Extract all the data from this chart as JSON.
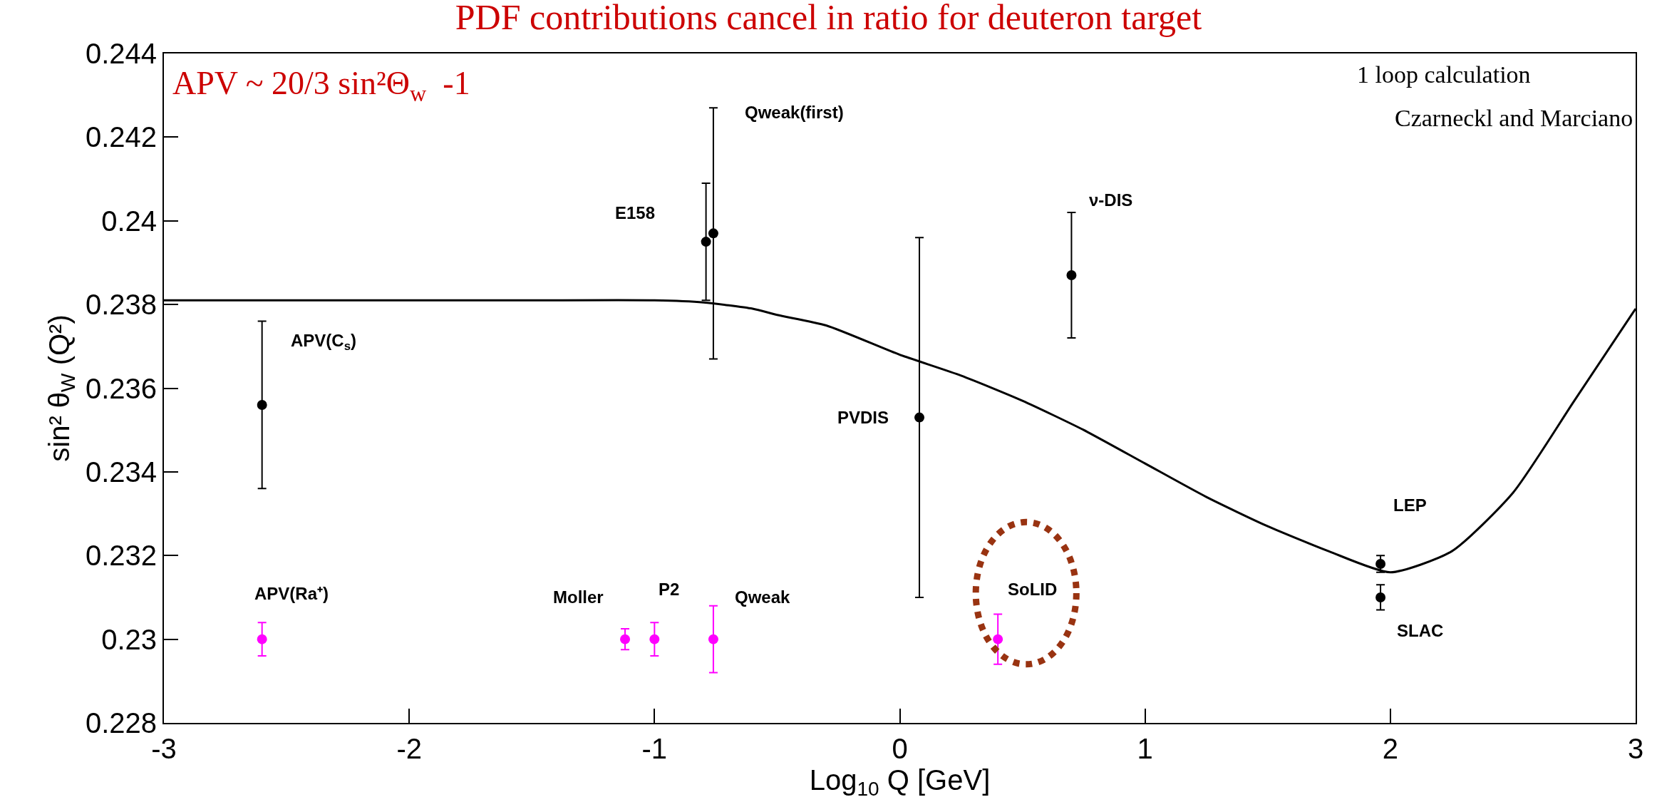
{
  "chart_data": {
    "type": "scatter",
    "title": "PDF contributions cancel in ratio for deuteron target",
    "xlabel": "Log$_{10}$ Q [GeV]",
    "ylabel": "sin² θ$_{W}$ (Q²)",
    "xlim": [
      -3,
      3
    ],
    "xticks": [
      -3,
      -2,
      -1,
      0,
      1,
      2,
      3
    ],
    "ylim": [
      0.228,
      0.244
    ],
    "yticks": [
      0.228,
      0.23,
      0.232,
      0.234,
      0.236,
      0.238,
      0.24,
      0.242,
      0.244
    ],
    "grid": false,
    "series": [
      {
        "type": "line",
        "color": "#000000",
        "line_style": "solid",
        "x": [
          -3,
          -2,
          -1.5,
          -1,
          -0.8,
          -0.6,
          -0.5,
          -0.3,
          0,
          0.25,
          0.5,
          0.75,
          1,
          1.25,
          1.5,
          1.75,
          2,
          2.25,
          2.5,
          2.75,
          3
        ],
        "values": [
          0.2381,
          0.2381,
          0.2381,
          0.2381,
          0.23805,
          0.2379,
          0.23775,
          0.2375,
          0.2368,
          0.2363,
          0.2357,
          0.235,
          0.2342,
          0.2334,
          0.2327,
          0.2321,
          0.2316,
          0.2321,
          0.2335,
          0.2357,
          0.2379
        ]
      },
      {
        "color": "#000000",
        "marker": "circle",
        "x": [
          -2.6,
          -0.79,
          -0.76,
          0.08,
          0.7,
          1.96,
          1.96
        ],
        "values": [
          0.2356,
          0.2395,
          0.2397,
          0.2353,
          0.2387,
          0.2318,
          0.231
        ],
        "errors": [
          0.002,
          0.0014,
          0.003,
          0.0043,
          0.0015,
          0.0002,
          0.0003
        ]
      },
      {
        "color": "#ff00ff",
        "marker": "circle",
        "x": [
          -2.6,
          -1.12,
          -1,
          -0.76,
          0.4
        ],
        "values": [
          0.23,
          0.23,
          0.23,
          0.23,
          0.23
        ],
        "errors": [
          0.0004,
          0.00025,
          0.0004,
          0.0008,
          0.0006
        ]
      }
    ],
    "annotations": [
      "APV ~ 20/3 sin²Θ$_{w}$  -1",
      "1 loop calculation",
      "Czarneckl and Marciano",
      "APV(C$_{s}$)",
      "E158",
      "Qweak(first)",
      "ν-DIS",
      "PVDIS",
      "LEP",
      "SLAC",
      "SoLID",
      "APV(Ra⁺)",
      "Moller",
      "P2",
      "Qweak"
    ]
  }
}
